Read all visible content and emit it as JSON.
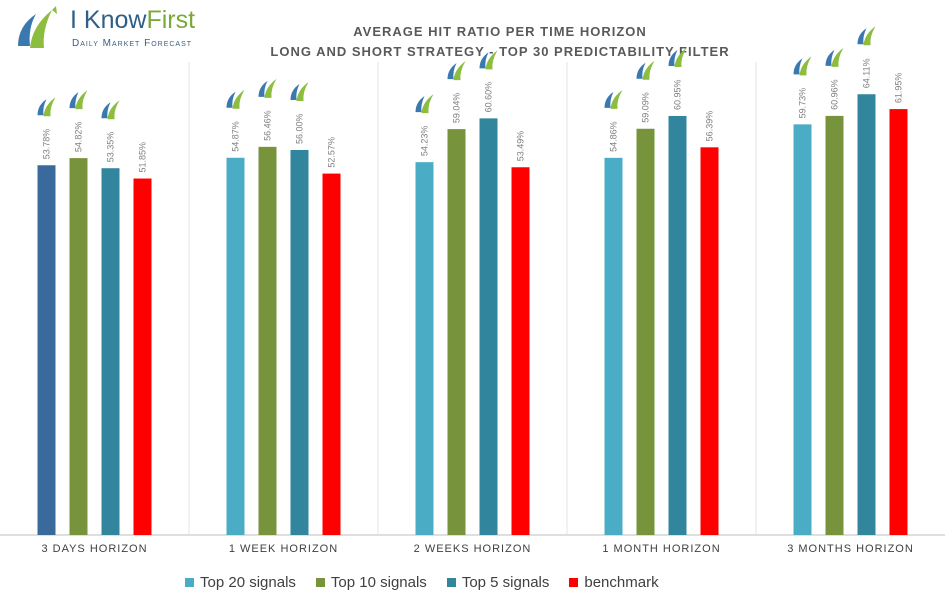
{
  "logo": {
    "brand_i": "I Know",
    "brand_first": "First",
    "tagline": "Daily Market Forecast"
  },
  "chart_data": {
    "type": "bar",
    "title": "AVERAGE HIT RATIO PER TIME HORIZON",
    "subtitle": "LONG AND SHORT STRATEGY - TOP 30 PREDICTABILITY FILTER",
    "categories": [
      "3 DAYS HORIZON",
      "1 WEEK HORIZON",
      "2 WEEKS HORIZON",
      "1 MONTH HORIZON",
      "3 MONTHS HORIZON"
    ],
    "series": [
      {
        "name": "Top 20 signals",
        "color": "#4bacc6",
        "values": [
          53.78,
          54.87,
          54.23,
          54.86,
          59.73
        ]
      },
      {
        "name": "Top 10 signals",
        "color": "#77933c",
        "values": [
          54.82,
          56.46,
          59.04,
          59.09,
          60.96
        ]
      },
      {
        "name": "Top 5 signals",
        "color": "#31859c",
        "values": [
          53.35,
          56.0,
          60.6,
          60.95,
          64.11
        ]
      },
      {
        "name": "benchmark",
        "color": "#ff0000",
        "values": [
          51.85,
          52.57,
          53.49,
          56.39,
          61.95
        ]
      }
    ],
    "first_bar_color": "#3a6a9c",
    "ylim": [
      0,
      72
    ],
    "grid": false,
    "legend": "bottom",
    "xlabel": "",
    "ylabel": ""
  }
}
